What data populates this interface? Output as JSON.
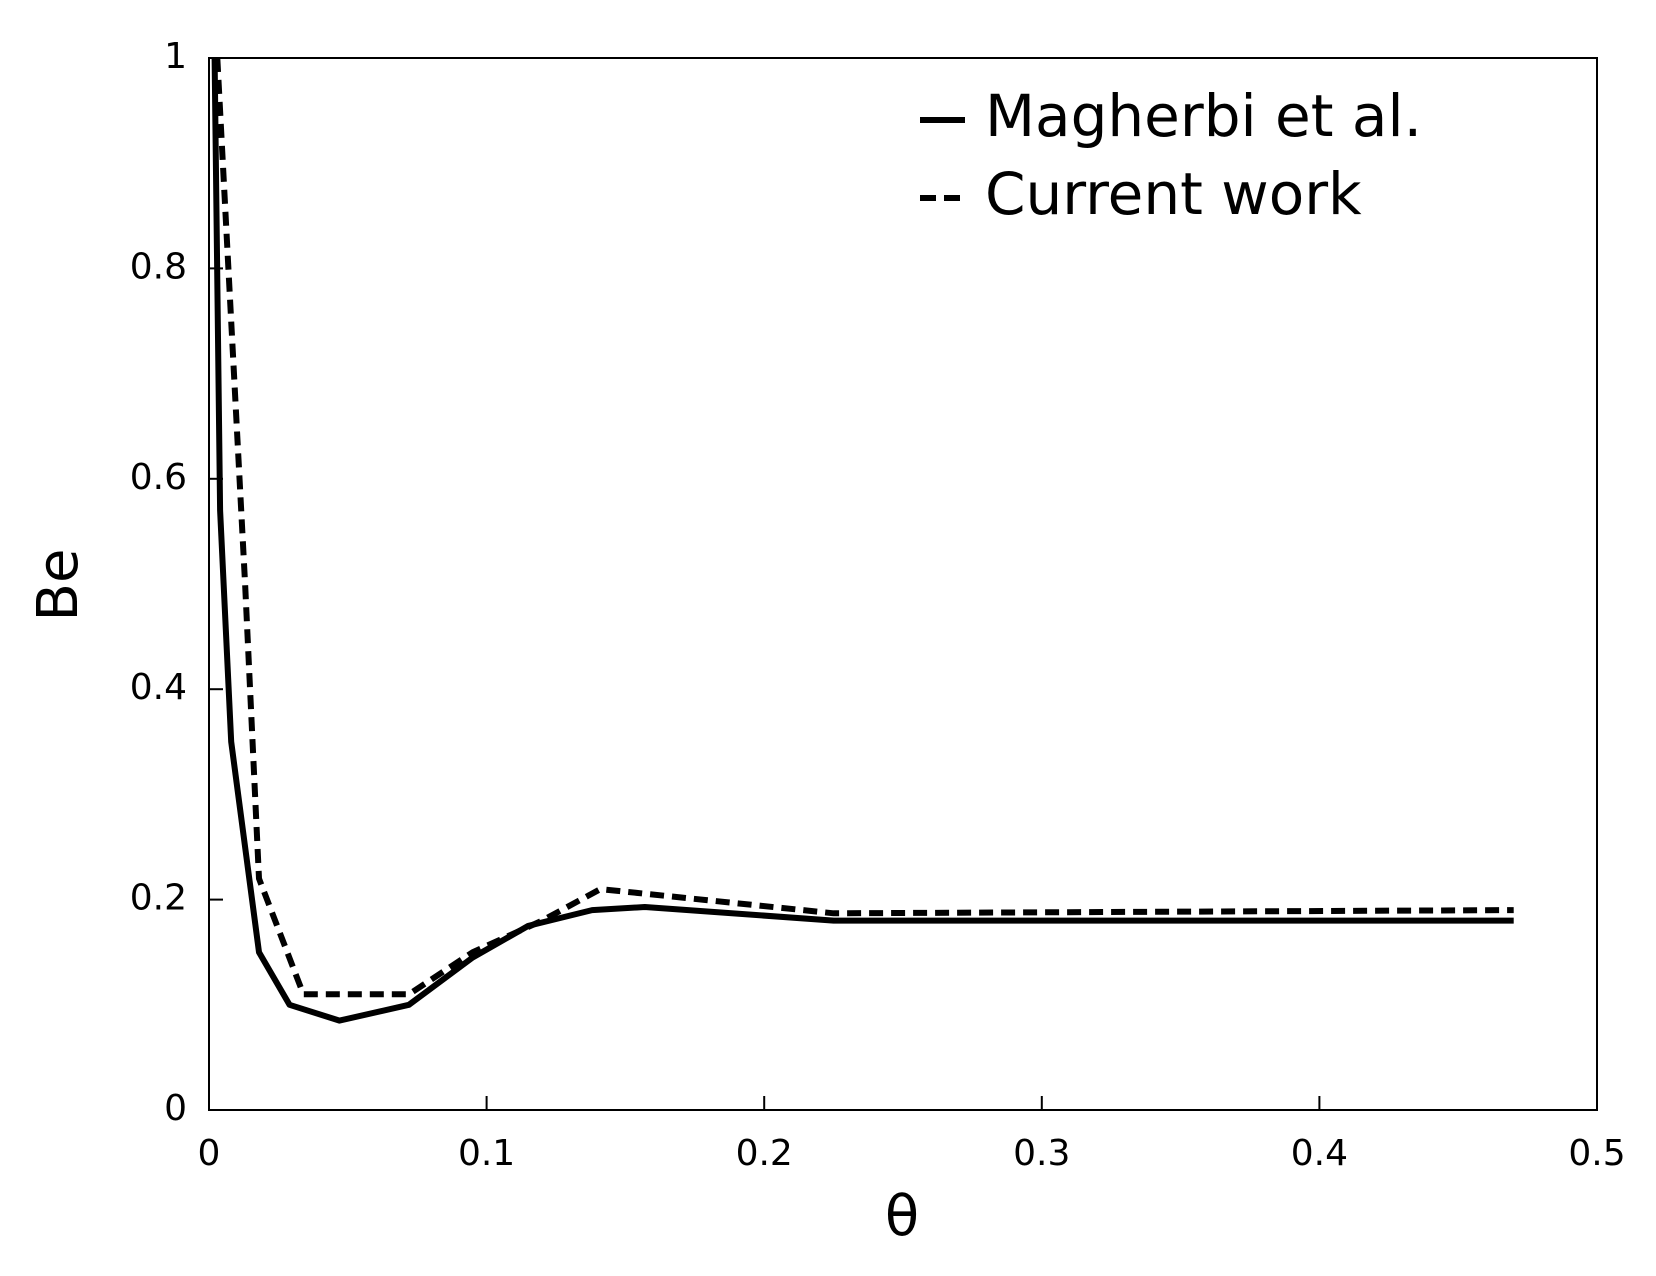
{
  "chart_data": {
    "type": "line",
    "x_label": "θ",
    "y_label": "Be",
    "xlim": [
      0,
      0.5
    ],
    "ylim": [
      0,
      1
    ],
    "xticks": [
      0,
      0.1,
      0.2,
      0.3,
      0.4,
      0.5
    ],
    "yticks": [
      0,
      0.2,
      0.4,
      0.6,
      0.8,
      1
    ],
    "legend": "upper right",
    "series": [
      {
        "name": "Magherbi et al.",
        "color": "#000000",
        "style": "solid",
        "x": [
          0.002,
          0.004,
          0.008,
          0.018,
          0.029,
          0.047,
          0.072,
          0.095,
          0.115,
          0.138,
          0.157,
          0.225,
          0.47
        ],
        "values": [
          1.0,
          0.57,
          0.35,
          0.15,
          0.1,
          0.085,
          0.1,
          0.145,
          0.175,
          0.19,
          0.193,
          0.18,
          0.18
        ]
      },
      {
        "name": "Current work",
        "color": "#000000",
        "style": "dashed",
        "x": [
          0.003,
          0.007,
          0.013,
          0.018,
          0.034,
          0.072,
          0.095,
          0.12,
          0.141,
          0.225,
          0.47
        ],
        "values": [
          1.0,
          0.8,
          0.5,
          0.22,
          0.11,
          0.11,
          0.15,
          0.18,
          0.21,
          0.187,
          0.19
        ]
      }
    ]
  }
}
